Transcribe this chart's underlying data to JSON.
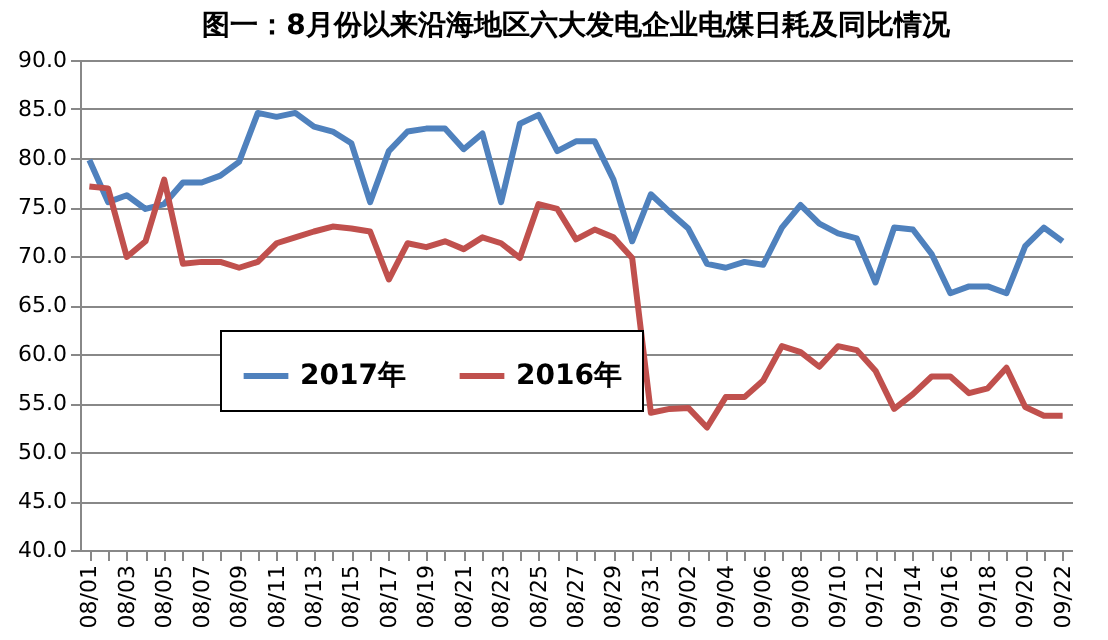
{
  "chart_data": {
    "type": "line",
    "title": "图一：8月份以来沿海地区六大发电企业电煤日耗及同比情况",
    "categories": [
      "08/01",
      null,
      "08/03",
      null,
      "08/05",
      null,
      "08/07",
      null,
      "08/09",
      null,
      "08/11",
      null,
      "08/13",
      null,
      "08/15",
      null,
      "08/17",
      null,
      "08/19",
      null,
      "08/21",
      null,
      "08/23",
      null,
      "08/25",
      null,
      "08/27",
      null,
      "08/29",
      null,
      "08/31",
      null,
      "09/02",
      null,
      "09/04",
      null,
      "09/06",
      null,
      "09/08",
      null,
      "09/10",
      null,
      "09/12",
      null,
      "09/14",
      null,
      "09/16",
      null,
      "09/18",
      null,
      "09/20",
      null,
      "09/22"
    ],
    "series": [
      {
        "name": "2017年",
        "color": "#4f81bd",
        "values": [
          79.8,
          75.5,
          76.2,
          74.8,
          75.3,
          77.5,
          77.5,
          78.2,
          79.6,
          84.6,
          84.2,
          84.6,
          83.2,
          82.7,
          81.5,
          75.5,
          80.7,
          82.7,
          83.0,
          83.0,
          80.9,
          82.5,
          75.5,
          83.5,
          84.4,
          80.7,
          81.7,
          81.7,
          77.8,
          71.5,
          76.3,
          74.5,
          72.8,
          69.2,
          68.8,
          69.4,
          69.1,
          72.9,
          75.2,
          73.3,
          72.3,
          71.8,
          67.3,
          72.9,
          72.7,
          70.2,
          66.2,
          66.9,
          66.9,
          66.2,
          71.0,
          72.9,
          71.5
        ]
      },
      {
        "name": "2016年",
        "color": "#c0504d",
        "values": [
          77.1,
          76.9,
          69.9,
          71.5,
          77.8,
          69.2,
          69.4,
          69.4,
          68.8,
          69.4,
          71.3,
          71.9,
          72.5,
          73.0,
          72.8,
          72.5,
          67.6,
          71.3,
          70.9,
          71.5,
          70.7,
          71.9,
          71.3,
          69.8,
          75.3,
          74.8,
          71.7,
          72.7,
          71.9,
          69.8,
          54.0,
          54.4,
          54.5,
          52.5,
          55.6,
          55.6,
          57.3,
          60.8,
          60.2,
          58.7,
          60.8,
          60.4,
          58.3,
          54.4,
          55.9,
          57.7,
          57.7,
          56.0,
          56.5,
          58.6,
          54.6,
          53.7,
          53.7
        ]
      }
    ],
    "ylim": [
      40,
      90
    ],
    "yticks": [
      {
        "value": 40,
        "label": "40.0"
      },
      {
        "value": 45,
        "label": "45.0"
      },
      {
        "value": 50,
        "label": "50.0"
      },
      {
        "value": 55,
        "label": "55.0"
      },
      {
        "value": 60,
        "label": "60.0"
      },
      {
        "value": 65,
        "label": "65.0"
      },
      {
        "value": 70,
        "label": "70.0"
      },
      {
        "value": 75,
        "label": "75.0"
      },
      {
        "value": 80,
        "label": "80.0"
      },
      {
        "value": 85,
        "label": "85.0"
      },
      {
        "value": 90,
        "label": "90.0"
      }
    ],
    "grid": "y",
    "legend": "bottom left",
    "marker": "none",
    "line_style": "solid"
  }
}
